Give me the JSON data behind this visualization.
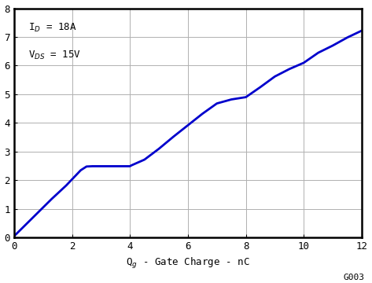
{
  "title": "",
  "xlabel": "Q$_g$ - Gate Charge - nC",
  "xlim": [
    0,
    12
  ],
  "ylim": [
    0,
    8
  ],
  "xticks": [
    0,
    2,
    4,
    6,
    8,
    10,
    12
  ],
  "yticks": [
    0,
    1,
    2,
    3,
    4,
    5,
    6,
    7,
    8
  ],
  "line_color": "#0000CC",
  "line_width": 2.0,
  "annotation_line1": "I$_D$ = 18A",
  "annotation_line2": "V$_{DS}$ = 15V",
  "watermark": "G003",
  "curve_x": [
    0.0,
    0.3,
    0.8,
    1.3,
    1.8,
    2.3,
    2.5,
    2.7,
    3.0,
    3.5,
    4.0,
    4.05,
    4.5,
    5.0,
    5.5,
    6.0,
    6.5,
    7.0,
    7.5,
    8.0,
    8.5,
    9.0,
    9.5,
    10.0,
    10.5,
    11.0,
    11.5,
    12.0
  ],
  "curve_y": [
    0.05,
    0.35,
    0.85,
    1.35,
    1.82,
    2.35,
    2.48,
    2.49,
    2.49,
    2.49,
    2.49,
    2.52,
    2.72,
    3.1,
    3.52,
    3.92,
    4.32,
    4.68,
    4.82,
    4.9,
    5.25,
    5.62,
    5.88,
    6.1,
    6.45,
    6.7,
    6.98,
    7.22
  ],
  "background_color": "#ffffff",
  "grid_color": "#b0b0b0",
  "font_family": "monospace"
}
